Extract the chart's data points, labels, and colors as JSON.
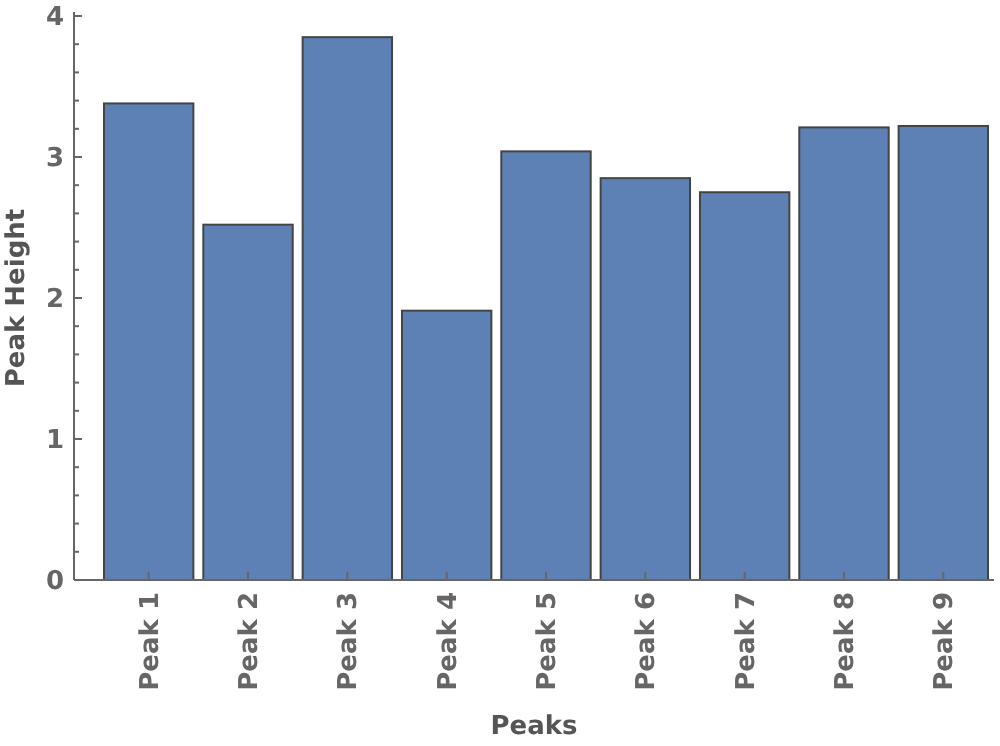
{
  "chart_data": {
    "type": "bar",
    "xlabel": "Peaks",
    "ylabel": "Peak Height",
    "categories": [
      "Peak 1",
      "Peak 2",
      "Peak 3",
      "Peak 4",
      "Peak 5",
      "Peak 6",
      "Peak 7",
      "Peak 8",
      "Peak 9"
    ],
    "values": [
      3.38,
      2.52,
      3.85,
      1.91,
      3.04,
      2.85,
      2.75,
      3.21,
      3.22
    ],
    "color": "#5e81b5",
    "ylim": [
      0,
      4
    ],
    "yticks": [
      0,
      {
        "value": 0.2,
        "label": null
      },
      {
        "value": 0.4,
        "label": null
      },
      {
        "value": 0.6,
        "label": null
      },
      {
        "value": 0.8,
        "label": null
      },
      1,
      {
        "value": 1.2,
        "label": null
      },
      {
        "value": 1.4,
        "label": null
      },
      {
        "value": 1.6,
        "label": null
      },
      {
        "value": 1.8,
        "label": null
      },
      2,
      {
        "value": 2.2,
        "label": null
      },
      {
        "value": 2.4,
        "label": null
      },
      {
        "value": 2.6,
        "label": null
      },
      {
        "value": 2.8,
        "label": null
      },
      3,
      {
        "value": 3.2,
        "label": null
      },
      {
        "value": 3.4,
        "label": null
      },
      {
        "value": 3.6,
        "label": null
      },
      {
        "value": 3.8,
        "label": null
      },
      4
    ],
    "grid": false
  }
}
